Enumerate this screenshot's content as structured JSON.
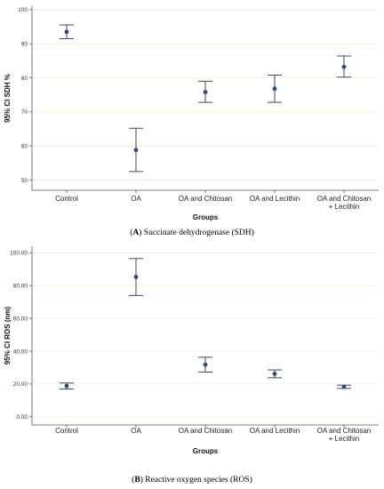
{
  "chart_data": [
    {
      "type": "errorbar",
      "caption_letter": "A",
      "caption_text": "Succinate dehydrogenase (SDH)",
      "categories": [
        "Control",
        "OA",
        "OA and Chitosan",
        "OA and Lecithin",
        "OA and Chitosan + Lecithin"
      ],
      "category_lines": [
        [
          "Control"
        ],
        [
          "OA"
        ],
        [
          "OA and Chitosan"
        ],
        [
          "OA and Lecithin"
        ],
        [
          "OA and Chitosan",
          "+ Lecithin"
        ]
      ],
      "means": [
        93.5,
        58.8,
        75.8,
        76.8,
        83.2
      ],
      "lower": [
        91.5,
        52.5,
        72.8,
        72.8,
        80.2
      ],
      "upper": [
        95.5,
        65.2,
        79.0,
        80.8,
        86.4
      ],
      "xlabel": "Groups",
      "ylabel": "95% CI SDH %",
      "ylim": [
        47,
        101
      ],
      "yticks": [
        50,
        60,
        70,
        80,
        90,
        100
      ],
      "ytick_labels": [
        "50",
        "60",
        "70",
        "80",
        "90",
        "100"
      ],
      "grid": true,
      "marker_color": "#2f4a78",
      "grid_color": "#eef0c8"
    },
    {
      "type": "errorbar",
      "caption_letter": "B",
      "caption_text": "Reactive oxygen species (ROS)",
      "categories": [
        "Control",
        "OA",
        "OA and Chitosan",
        "OA and Lecithin",
        "OA and Chitosan + Lecithin"
      ],
      "category_lines": [
        [
          "Control"
        ],
        [
          "OA"
        ],
        [
          "OA and Chitosan"
        ],
        [
          "OA and Lecithin"
        ],
        [
          "OA and Chitosan",
          "+ Lecithin"
        ]
      ],
      "means": [
        18.8,
        85.3,
        31.8,
        26.2,
        18.3
      ],
      "lower": [
        17.0,
        74.0,
        27.3,
        23.8,
        17.3
      ],
      "upper": [
        20.6,
        96.5,
        36.3,
        28.6,
        19.3
      ],
      "xlabel": "Groups",
      "ylabel": "95% CI ROS (nm)",
      "ylim": [
        -5,
        104
      ],
      "yticks": [
        0,
        20,
        40,
        60,
        80,
        100
      ],
      "ytick_labels": [
        "0.00",
        "20.00",
        "40.00",
        "60.00",
        "80.00",
        "100.00"
      ],
      "grid": true,
      "marker_color": "#2f4a78",
      "grid_color": "#eef0c8"
    }
  ]
}
